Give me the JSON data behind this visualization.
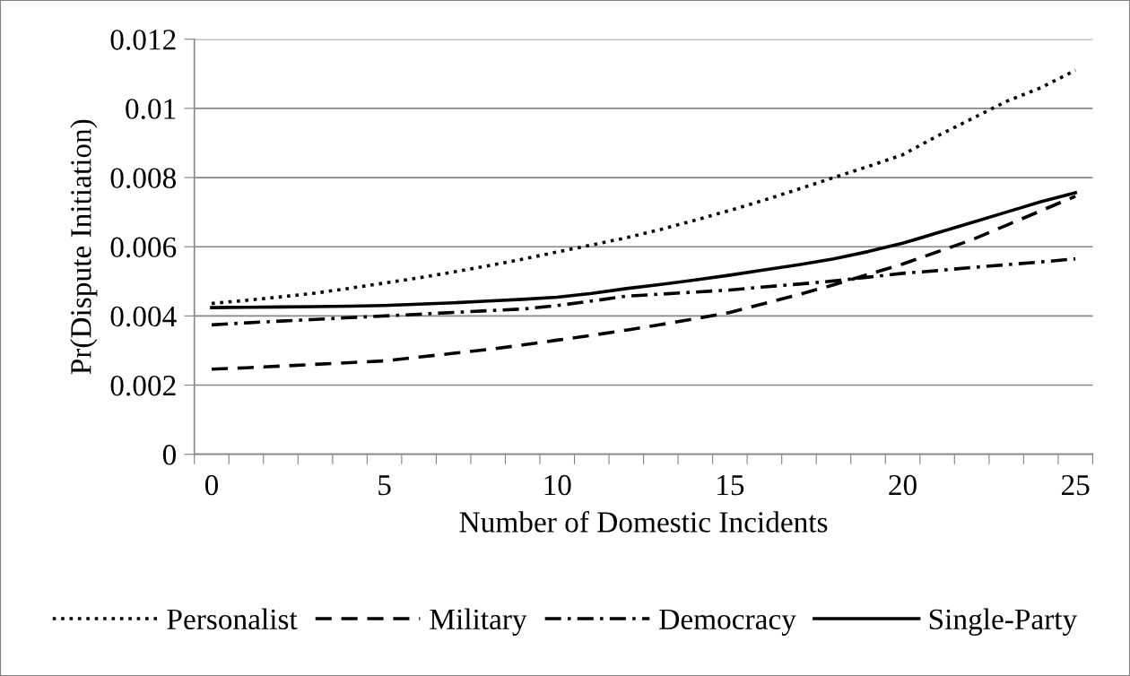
{
  "chart_data": {
    "type": "line",
    "xlabel": "Number of Domestic Incidents",
    "ylabel": "Pr(Dispute Initiation)",
    "x": [
      0,
      1,
      2,
      3,
      4,
      5,
      6,
      7,
      8,
      9,
      10,
      11,
      12,
      13,
      14,
      15,
      16,
      17,
      18,
      19,
      20,
      21,
      22,
      23,
      24,
      25
    ],
    "series": [
      {
        "name": "Personalist",
        "color": "#000000",
        "line_style": "dotted",
        "values": [
          0.00436,
          0.00445,
          0.00455,
          0.00466,
          0.0048,
          0.00495,
          0.0051,
          0.00527,
          0.00545,
          0.00564,
          0.00585,
          0.00605,
          0.00626,
          0.0065,
          0.00677,
          0.00705,
          0.00735,
          0.00767,
          0.008,
          0.00832,
          0.00866,
          0.0092,
          0.0097,
          0.0102,
          0.0106,
          0.0111
        ]
      },
      {
        "name": "Military",
        "color": "#000000",
        "line_style": "dashed",
        "values": [
          0.00246,
          0.0025,
          0.00255,
          0.0026,
          0.00265,
          0.0027,
          0.00281,
          0.00292,
          0.00303,
          0.00316,
          0.0033,
          0.00344,
          0.00359,
          0.00375,
          0.00392,
          0.0041,
          0.00436,
          0.00462,
          0.0049,
          0.0052,
          0.0055,
          0.00585,
          0.0062,
          0.00662,
          0.00704,
          0.00746
        ]
      },
      {
        "name": "Democracy",
        "color": "#000000",
        "line_style": "dashdot",
        "values": [
          0.00374,
          0.0038,
          0.00385,
          0.0039,
          0.00395,
          0.004,
          0.00405,
          0.0041,
          0.00415,
          0.0042,
          0.0043,
          0.00443,
          0.00457,
          0.00463,
          0.00469,
          0.00475,
          0.00484,
          0.00492,
          0.00501,
          0.00512,
          0.00523,
          0.00531,
          0.0054,
          0.00548,
          0.00556,
          0.00565
        ]
      },
      {
        "name": "Single-Party",
        "color": "#000000",
        "line_style": "solid",
        "values": [
          0.00424,
          0.00425,
          0.00426,
          0.00427,
          0.00428,
          0.0043,
          0.00434,
          0.00438,
          0.00443,
          0.00448,
          0.00454,
          0.00465,
          0.00479,
          0.00491,
          0.00504,
          0.00518,
          0.00533,
          0.00548,
          0.00565,
          0.00586,
          0.0061,
          0.0064,
          0.0067,
          0.007,
          0.0073,
          0.00756
        ]
      }
    ],
    "xlim": [
      -0.5,
      25.5
    ],
    "xticks": [
      {
        "value": -0.5,
        "label": null
      },
      {
        "value": 0.5,
        "label": null
      },
      {
        "value": 1.5,
        "label": null
      },
      {
        "value": 2.5,
        "label": null
      },
      {
        "value": 3.5,
        "label": null
      },
      {
        "value": 4.5,
        "label": null
      },
      {
        "value": 5.5,
        "label": null
      },
      {
        "value": 6.5,
        "label": null
      },
      {
        "value": 7.5,
        "label": null
      },
      {
        "value": 8.5,
        "label": null
      },
      {
        "value": 9.5,
        "label": null
      },
      {
        "value": 10.5,
        "label": null
      },
      {
        "value": 11.5,
        "label": null
      },
      {
        "value": 12.5,
        "label": null
      },
      {
        "value": 13.5,
        "label": null
      },
      {
        "value": 14.5,
        "label": null
      },
      {
        "value": 15.5,
        "label": null
      },
      {
        "value": 16.5,
        "label": null
      },
      {
        "value": 17.5,
        "label": null
      },
      {
        "value": 18.5,
        "label": null
      },
      {
        "value": 19.5,
        "label": null
      },
      {
        "value": 20.5,
        "label": null
      },
      {
        "value": 21.5,
        "label": null
      },
      {
        "value": 22.5,
        "label": null
      },
      {
        "value": 23.5,
        "label": null
      },
      {
        "value": 24.5,
        "label": null
      },
      {
        "value": 25.5,
        "label": null
      },
      0,
      5,
      10,
      15,
      20,
      25
    ],
    "ylim": [
      0,
      0.012
    ],
    "yticks": [
      0,
      0.002,
      0.004,
      0.006,
      0.008,
      0.01,
      0.012
    ],
    "grid": "y",
    "legend": "bottom",
    "marker": "none"
  }
}
